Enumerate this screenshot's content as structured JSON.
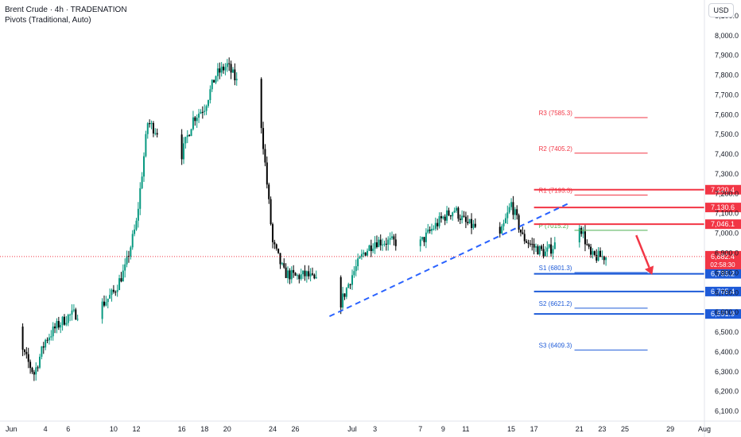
{
  "legend": {
    "symbol": "Brent Crude · 4h · TRADENATION",
    "indicator": "Pivots (Traditional, Auto)"
  },
  "currency_button": "USD",
  "colors": {
    "up": "#089981",
    "down": "#000000",
    "resistance": "#f23645",
    "support": "#1e5bd8",
    "pivot": "#4caf50",
    "trendline": "#2962ff",
    "arrow": "#f23645"
  },
  "chart_data": {
    "type": "candlestick",
    "ylim": [
      6050,
      8180
    ],
    "yticks": [
      6100,
      6200,
      6300,
      6400,
      6500,
      6600,
      6700,
      6800,
      6900,
      7000,
      7100,
      7200,
      7300,
      7400,
      7500,
      7600,
      7700,
      7800,
      7900,
      8000,
      8100
    ],
    "ytick_labels": [
      "6,100.0",
      "6,200.0",
      "6,300.0",
      "6,400.0",
      "6,500.0",
      "6,600.0",
      "6,700.0",
      "6,800.0",
      "6,900.0",
      "7,000.0",
      "7,100.0",
      "7,200.0",
      "7,300.0",
      "7,400.0",
      "7,500.0",
      "7,600.0",
      "7,700.0",
      "7,800.0",
      "7,900.0",
      "8,000.0",
      "8,100.0"
    ],
    "x_dates": [
      "2025-05-31",
      "2025-08-01"
    ],
    "xticks": [
      {
        "date": "2025-06-01",
        "label": "Jun"
      },
      {
        "date": "2025-06-04",
        "label": "4"
      },
      {
        "date": "2025-06-06",
        "label": "6"
      },
      {
        "date": "2025-06-10",
        "label": "10"
      },
      {
        "date": "2025-06-12",
        "label": "12"
      },
      {
        "date": "2025-06-16",
        "label": "16"
      },
      {
        "date": "2025-06-18",
        "label": "18"
      },
      {
        "date": "2025-06-20",
        "label": "20"
      },
      {
        "date": "2025-06-24",
        "label": "24"
      },
      {
        "date": "2025-06-26",
        "label": "26"
      },
      {
        "date": "2025-07-01",
        "label": "Jul"
      },
      {
        "date": "2025-07-03",
        "label": "3"
      },
      {
        "date": "2025-07-07",
        "label": "7"
      },
      {
        "date": "2025-07-09",
        "label": "9"
      },
      {
        "date": "2025-07-11",
        "label": "11"
      },
      {
        "date": "2025-07-15",
        "label": "15"
      },
      {
        "date": "2025-07-17",
        "label": "17"
      },
      {
        "date": "2025-07-21",
        "label": "21"
      },
      {
        "date": "2025-07-23",
        "label": "23"
      },
      {
        "date": "2025-07-25",
        "label": "25"
      },
      {
        "date": "2025-07-29",
        "label": "29"
      },
      {
        "date": "2025-08-01",
        "label": "Aug"
      }
    ],
    "price_path": [
      [
        "2025-05-30",
        6560
      ],
      [
        "2025-06-02",
        6400
      ],
      [
        "2025-06-03",
        6290
      ],
      [
        "2025-06-04",
        6460
      ],
      [
        "2025-06-05",
        6530
      ],
      [
        "2025-06-06",
        6580
      ],
      [
        "2025-06-09",
        6640
      ],
      [
        "2025-06-10",
        6700
      ],
      [
        "2025-06-11",
        6820
      ],
      [
        "2025-06-12",
        7050
      ],
      [
        "2025-06-13",
        7560
      ],
      [
        "2025-06-16",
        7400
      ],
      [
        "2025-06-17",
        7580
      ],
      [
        "2025-06-18",
        7640
      ],
      [
        "2025-06-19",
        7800
      ],
      [
        "2025-06-20",
        7850
      ],
      [
        "2025-06-23",
        7550
      ],
      [
        "2025-06-24",
        6950
      ],
      [
        "2025-06-25",
        6800
      ],
      [
        "2025-06-26",
        6780
      ],
      [
        "2025-06-27",
        6790
      ],
      [
        "2025-06-30",
        6650
      ],
      [
        "2025-07-01",
        6790
      ],
      [
        "2025-07-02",
        6900
      ],
      [
        "2025-07-03",
        6960
      ],
      [
        "2025-07-07",
        6950
      ],
      [
        "2025-07-08",
        7020
      ],
      [
        "2025-07-09",
        7080
      ],
      [
        "2025-07-10",
        7120
      ],
      [
        "2025-07-11",
        7050
      ],
      [
        "2025-07-14",
        6980
      ],
      [
        "2025-07-15",
        7150
      ],
      [
        "2025-07-16",
        6980
      ],
      [
        "2025-07-17",
        6930
      ],
      [
        "2025-07-18",
        6900
      ],
      [
        "2025-07-21",
        7050
      ],
      [
        "2025-07-22",
        6880
      ],
      [
        "2025-07-23",
        6882
      ]
    ],
    "pivots": [
      {
        "name": "R3",
        "label": "R3 (7585.3)",
        "value": 7585.3
      },
      {
        "name": "R2",
        "label": "R2 (7405.2)",
        "value": 7405.2
      },
      {
        "name": "R1",
        "label": "R1 (7193.3)",
        "value": 7193.3
      },
      {
        "name": "P",
        "label": "P (7015.2)",
        "value": 7015.2
      },
      {
        "name": "S1",
        "label": "S1 (6801.3)",
        "value": 6801.3
      },
      {
        "name": "S2",
        "label": "S2 (6621.2)",
        "value": 6621.2
      },
      {
        "name": "S3",
        "label": "S3 (6409.3)",
        "value": 6409.3
      }
    ],
    "pivot_start": "2025-07-17",
    "pivot_end": "2025-07-27",
    "levels": [
      {
        "label": "7,220.4",
        "value": 7220.4,
        "kind": "resistance"
      },
      {
        "label": "7,130.6",
        "value": 7130.6,
        "kind": "resistance"
      },
      {
        "label": "7,046.1",
        "value": 7046.1,
        "kind": "resistance"
      },
      {
        "label": "6,795.2",
        "value": 6795.2,
        "kind": "support"
      },
      {
        "label": "6,705.4",
        "value": 6705.4,
        "kind": "support"
      },
      {
        "label": "6,591.9",
        "value": 6591.9,
        "kind": "support"
      }
    ],
    "levels_start": "2025-07-17",
    "last_price": {
      "value": 6882.4,
      "label": "6,882.4",
      "countdown": "02:58:30"
    },
    "trendline": {
      "from": [
        "2025-06-29",
        6580
      ],
      "to": [
        "2025-07-20",
        7150
      ]
    },
    "projection": {
      "from": [
        "2025-07-26",
        6990
      ],
      "to": [
        "2025-07-27.4",
        6790
      ]
    }
  }
}
